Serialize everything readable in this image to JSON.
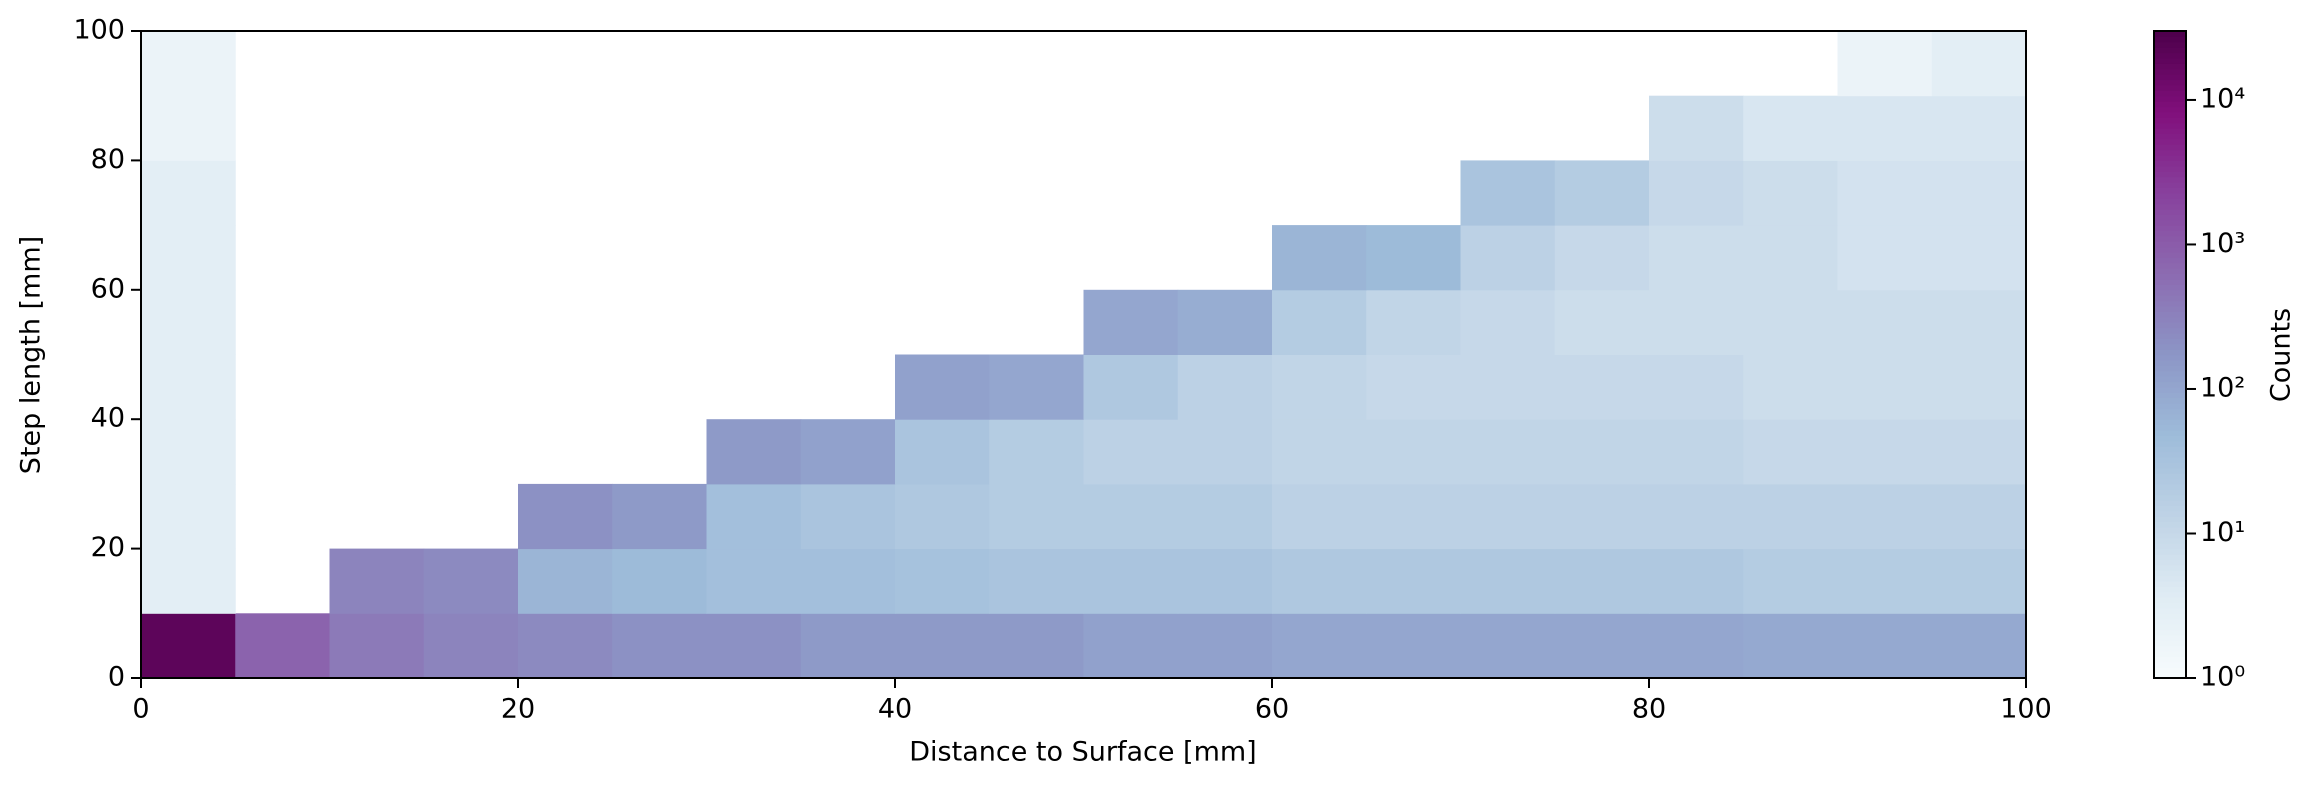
{
  "chart_data": {
    "type": "hist2d",
    "xlabel": "Distance to Surface [mm]",
    "ylabel": "Step length [mm]",
    "xlim": [
      0,
      100
    ],
    "ylim": [
      0,
      100
    ],
    "xticks": [
      0,
      20,
      40,
      60,
      80,
      100
    ],
    "yticks": [
      0,
      20,
      40,
      60,
      80,
      100
    ],
    "xbins": [
      0,
      5,
      10,
      15,
      20,
      25,
      30,
      35,
      40,
      45,
      50,
      55,
      60,
      65,
      70,
      75,
      80,
      85,
      90,
      95,
      100
    ],
    "ybins": [
      0,
      10,
      20,
      30,
      40,
      50,
      60,
      70,
      80,
      90,
      100
    ],
    "z": [
      [
        20000,
        800,
        400,
        300,
        250,
        200,
        200,
        150,
        150,
        150,
        120,
        120,
        100,
        100,
        100,
        100,
        100,
        90,
        90,
        90
      ],
      [
        3,
        null,
        300,
        250,
        60,
        50,
        40,
        40,
        35,
        30,
        30,
        30,
        25,
        25,
        25,
        25,
        25,
        20,
        20,
        20
      ],
      [
        3,
        null,
        null,
        null,
        200,
        150,
        40,
        30,
        25,
        20,
        20,
        20,
        15,
        15,
        15,
        15,
        15,
        15,
        15,
        15
      ],
      [
        3,
        null,
        null,
        null,
        null,
        null,
        150,
        120,
        30,
        20,
        15,
        15,
        12,
        12,
        12,
        12,
        12,
        10,
        10,
        10
      ],
      [
        3,
        null,
        null,
        null,
        null,
        null,
        null,
        null,
        120,
        100,
        25,
        15,
        12,
        10,
        10,
        10,
        10,
        8,
        8,
        8
      ],
      [
        3,
        null,
        null,
        null,
        null,
        null,
        null,
        null,
        null,
        null,
        100,
        80,
        20,
        12,
        10,
        8,
        8,
        8,
        8,
        8
      ],
      [
        3,
        null,
        null,
        null,
        null,
        null,
        null,
        null,
        null,
        null,
        null,
        null,
        60,
        50,
        15,
        10,
        8,
        8,
        6,
        6
      ],
      [
        3,
        null,
        null,
        null,
        null,
        null,
        null,
        null,
        null,
        null,
        null,
        null,
        null,
        null,
        30,
        20,
        10,
        8,
        6,
        6
      ],
      [
        2,
        null,
        null,
        null,
        null,
        null,
        null,
        null,
        null,
        null,
        null,
        null,
        null,
        null,
        null,
        null,
        8,
        5,
        5,
        5
      ],
      [
        2,
        null,
        null,
        null,
        null,
        null,
        null,
        null,
        null,
        null,
        null,
        null,
        null,
        null,
        null,
        null,
        null,
        null,
        2,
        3
      ]
    ],
    "colorbar_label": "Counts",
    "colorbar_log": true,
    "clim": [
      1,
      30000
    ],
    "colorbar_ticks": [
      {
        "value": 1,
        "label": "10⁰"
      },
      {
        "value": 10,
        "label": "10¹"
      },
      {
        "value": 100,
        "label": "10²"
      },
      {
        "value": 1000,
        "label": "10³"
      },
      {
        "value": 10000,
        "label": "10⁴"
      }
    ],
    "colormap": [
      "#f7fcfd",
      "#e0ecf4",
      "#bfd3e6",
      "#9ebcda",
      "#8c96c6",
      "#8c6bb1",
      "#88419d",
      "#810f7c",
      "#4d004b"
    ]
  }
}
